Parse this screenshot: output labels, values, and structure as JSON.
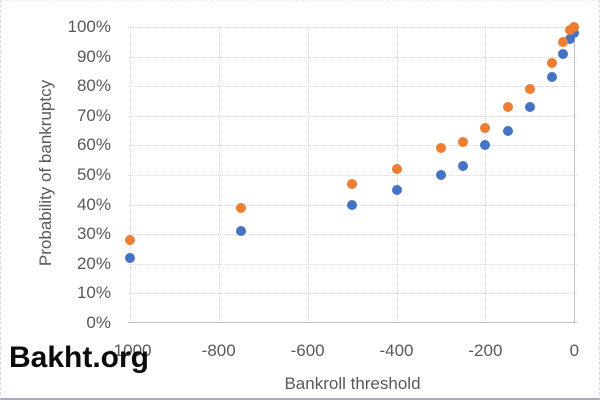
{
  "watermark": {
    "text": "Bakht.org"
  },
  "chart_data": {
    "type": "scatter",
    "title": "",
    "xlabel": "Bankroll threshold",
    "ylabel": "Probability of bankruptcy",
    "xlim": [
      -1004,
      6
    ],
    "ylim": [
      0,
      100
    ],
    "grid": "dotted",
    "legend": "none",
    "axis_color": "#bfbfbf",
    "gridline_color": "#d9d9d9",
    "text_color": "#595959",
    "marker_size_px": 10,
    "x_gridlines": [
      -1000,
      -800,
      -600,
      -400,
      -200
    ],
    "y_gridlines": [
      10,
      20,
      30,
      40,
      50,
      60,
      70,
      80,
      90,
      100
    ],
    "x_ticks": [
      {
        "value": -1000,
        "label": "-1000"
      },
      {
        "value": -800,
        "label": "-800"
      },
      {
        "value": -600,
        "label": "-600"
      },
      {
        "value": -400,
        "label": "-400"
      },
      {
        "value": -200,
        "label": "-200"
      },
      {
        "value": 0,
        "label": "0"
      }
    ],
    "y_ticks": [
      {
        "value": 0,
        "label": "0%"
      },
      {
        "value": 10,
        "label": "10%"
      },
      {
        "value": 20,
        "label": "20%"
      },
      {
        "value": 30,
        "label": "30%"
      },
      {
        "value": 40,
        "label": "40%"
      },
      {
        "value": 50,
        "label": "50%"
      },
      {
        "value": 60,
        "label": "60%"
      },
      {
        "value": 70,
        "label": "70%"
      },
      {
        "value": 80,
        "label": "80%"
      },
      {
        "value": 90,
        "label": "90%"
      },
      {
        "value": 100,
        "label": "100%"
      }
    ],
    "series": [
      {
        "name": "series-blue",
        "color": "#4472c4",
        "points": [
          [
            -1000,
            22
          ],
          [
            -750,
            31
          ],
          [
            -500,
            40
          ],
          [
            -400,
            45
          ],
          [
            -300,
            50
          ],
          [
            -250,
            53
          ],
          [
            -200,
            60
          ],
          [
            -150,
            65
          ],
          [
            -100,
            73
          ],
          [
            -50,
            83
          ],
          [
            -25,
            91
          ],
          [
            -10,
            96
          ],
          [
            0,
            98
          ]
        ]
      },
      {
        "name": "series-orange",
        "color": "#ed7d31",
        "points": [
          [
            -1000,
            28
          ],
          [
            -750,
            39
          ],
          [
            -500,
            47
          ],
          [
            -400,
            52
          ],
          [
            -300,
            59
          ],
          [
            -250,
            61
          ],
          [
            -200,
            66
          ],
          [
            -150,
            73
          ],
          [
            -100,
            79
          ],
          [
            -50,
            88
          ],
          [
            -25,
            95
          ],
          [
            -10,
            99
          ],
          [
            0,
            100
          ]
        ]
      }
    ]
  }
}
